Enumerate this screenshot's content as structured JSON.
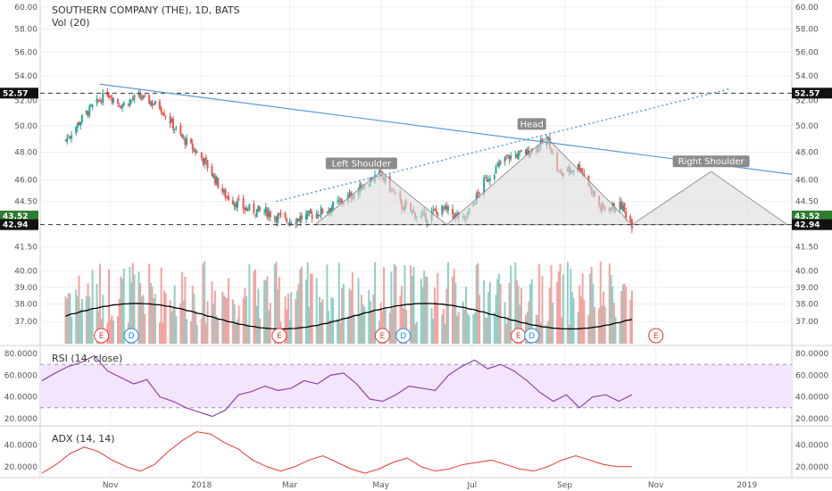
{
  "chart_data": {
    "type": "candlestick",
    "title": "SOUTHERN COMPANY (THE), 1D, BATS",
    "volume_label": "Vol (20)",
    "colors": {
      "up": "#26a69a",
      "down": "#ef5350",
      "vol_up": "#8fcfc6",
      "vol_down": "#f4a3a1",
      "vol_ma": "#000000",
      "trend": "#5b9bd5",
      "rsi_line": "#8e44ad",
      "rsi_band": "#f3e5fd",
      "adx_line": "#e53935",
      "pattern_fill": "#dcdcdc"
    },
    "x_tick_labels": [
      "Nov",
      "2018",
      "Mar",
      "May",
      "Jul",
      "Sep",
      "Nov",
      "2019"
    ],
    "price_axis": {
      "min": 36.5,
      "max": 60.5,
      "ticks": [
        "60.00",
        "58.00",
        "56.00",
        "54.00",
        "52.00",
        "50.00",
        "48.00",
        "46.00",
        "44.50",
        "41.50",
        "40.00",
        "39.00",
        "38.00",
        "37.00"
      ],
      "scale": "log"
    },
    "price_tags": [
      {
        "label": "52.57",
        "value": 52.57,
        "style": "dark"
      },
      {
        "label": "43.52",
        "value": 43.52,
        "style": "green"
      },
      {
        "label": "42.94",
        "value": 42.94,
        "style": "dark"
      }
    ],
    "ohlc_close_path": [
      [
        "2017-10-02",
        48.9
      ],
      [
        "2017-10-16",
        51.0
      ],
      [
        "2017-10-30",
        52.6
      ],
      [
        "2017-11-08",
        51.6
      ],
      [
        "2017-11-20",
        52.3
      ],
      [
        "2017-12-04",
        51.5
      ],
      [
        "2017-12-18",
        49.2
      ],
      [
        "2018-01-02",
        47.5
      ],
      [
        "2018-01-16",
        45.0
      ],
      [
        "2018-01-30",
        44.0
      ],
      [
        "2018-02-13",
        43.8
      ],
      [
        "2018-02-27",
        43.2
      ],
      [
        "2018-03-13",
        43.5
      ],
      [
        "2018-03-27",
        44.0
      ],
      [
        "2018-04-10",
        44.8
      ],
      [
        "2018-04-24",
        46.0
      ],
      [
        "2018-05-01",
        46.4
      ],
      [
        "2018-05-15",
        44.2
      ],
      [
        "2018-05-29",
        43.4
      ],
      [
        "2018-06-12",
        44.0
      ],
      [
        "2018-06-26",
        43.2
      ],
      [
        "2018-07-10",
        46.0
      ],
      [
        "2018-07-24",
        47.6
      ],
      [
        "2018-08-07",
        48.0
      ],
      [
        "2018-08-21",
        48.9
      ],
      [
        "2018-08-28",
        46.4
      ],
      [
        "2018-09-11",
        47.0
      ],
      [
        "2018-09-25",
        44.0
      ],
      [
        "2018-10-09",
        44.2
      ],
      [
        "2018-10-16",
        43.0
      ]
    ],
    "drawings": {
      "trendline_label": "",
      "pattern_labels": [
        "Left Shoulder",
        "Head",
        "Right Shoulder"
      ],
      "neckline": 42.94,
      "resistance": 52.57
    },
    "event_markers": [
      {
        "label": "E",
        "date": "2017-10-26"
      },
      {
        "label": "D",
        "date": "2017-11-15"
      },
      {
        "label": "E",
        "date": "2018-02-22"
      },
      {
        "label": "E",
        "date": "2018-05-02"
      },
      {
        "label": "D",
        "date": "2018-05-16"
      },
      {
        "label": "E",
        "date": "2018-08-01"
      },
      {
        "label": "D",
        "date": "2018-08-10"
      },
      {
        "label": "E",
        "date": "2018-11-01"
      }
    ],
    "rsi": {
      "label": "RSI (14, close)",
      "ticks": [
        "80.0000",
        "60.0000",
        "40.0000",
        "20.0000"
      ],
      "upper": 70,
      "lower": 30,
      "values": [
        [
          0,
          55
        ],
        [
          1,
          62
        ],
        [
          2,
          68
        ],
        [
          3,
          72
        ],
        [
          4,
          78
        ],
        [
          5,
          64
        ],
        [
          6,
          58
        ],
        [
          7,
          52
        ],
        [
          8,
          56
        ],
        [
          9,
          40
        ],
        [
          10,
          36
        ],
        [
          11,
          30
        ],
        [
          12,
          26
        ],
        [
          13,
          22
        ],
        [
          14,
          28
        ],
        [
          15,
          42
        ],
        [
          16,
          45
        ],
        [
          17,
          50
        ],
        [
          18,
          46
        ],
        [
          19,
          48
        ],
        [
          20,
          55
        ],
        [
          21,
          52
        ],
        [
          22,
          60
        ],
        [
          23,
          62
        ],
        [
          24,
          52
        ],
        [
          25,
          38
        ],
        [
          26,
          36
        ],
        [
          27,
          42
        ],
        [
          28,
          50
        ],
        [
          29,
          48
        ],
        [
          30,
          46
        ],
        [
          31,
          60
        ],
        [
          32,
          68
        ],
        [
          33,
          74
        ],
        [
          34,
          66
        ],
        [
          35,
          70
        ],
        [
          36,
          64
        ],
        [
          37,
          55
        ],
        [
          38,
          44
        ],
        [
          39,
          36
        ],
        [
          40,
          42
        ],
        [
          41,
          30
        ],
        [
          42,
          40
        ],
        [
          43,
          42
        ],
        [
          44,
          36
        ],
        [
          45,
          42
        ]
      ]
    },
    "adx": {
      "label": "ADX (14, 14)",
      "ticks": [
        "40.0000",
        "20.0000"
      ],
      "values": [
        [
          0,
          14
        ],
        [
          1,
          22
        ],
        [
          2,
          32
        ],
        [
          3,
          38
        ],
        [
          4,
          34
        ],
        [
          5,
          26
        ],
        [
          6,
          20
        ],
        [
          7,
          16
        ],
        [
          8,
          22
        ],
        [
          9,
          34
        ],
        [
          10,
          44
        ],
        [
          11,
          52
        ],
        [
          12,
          50
        ],
        [
          13,
          42
        ],
        [
          14,
          36
        ],
        [
          15,
          26
        ],
        [
          16,
          20
        ],
        [
          17,
          16
        ],
        [
          18,
          20
        ],
        [
          19,
          26
        ],
        [
          20,
          30
        ],
        [
          21,
          24
        ],
        [
          22,
          18
        ],
        [
          23,
          14
        ],
        [
          24,
          18
        ],
        [
          25,
          24
        ],
        [
          26,
          28
        ],
        [
          27,
          20
        ],
        [
          28,
          16
        ],
        [
          29,
          18
        ],
        [
          30,
          22
        ],
        [
          31,
          24
        ],
        [
          32,
          26
        ],
        [
          33,
          22
        ],
        [
          34,
          18
        ],
        [
          35,
          16
        ],
        [
          36,
          20
        ],
        [
          37,
          26
        ],
        [
          38,
          30
        ],
        [
          39,
          26
        ],
        [
          40,
          22
        ],
        [
          41,
          20
        ],
        [
          42,
          20
        ]
      ]
    }
  }
}
